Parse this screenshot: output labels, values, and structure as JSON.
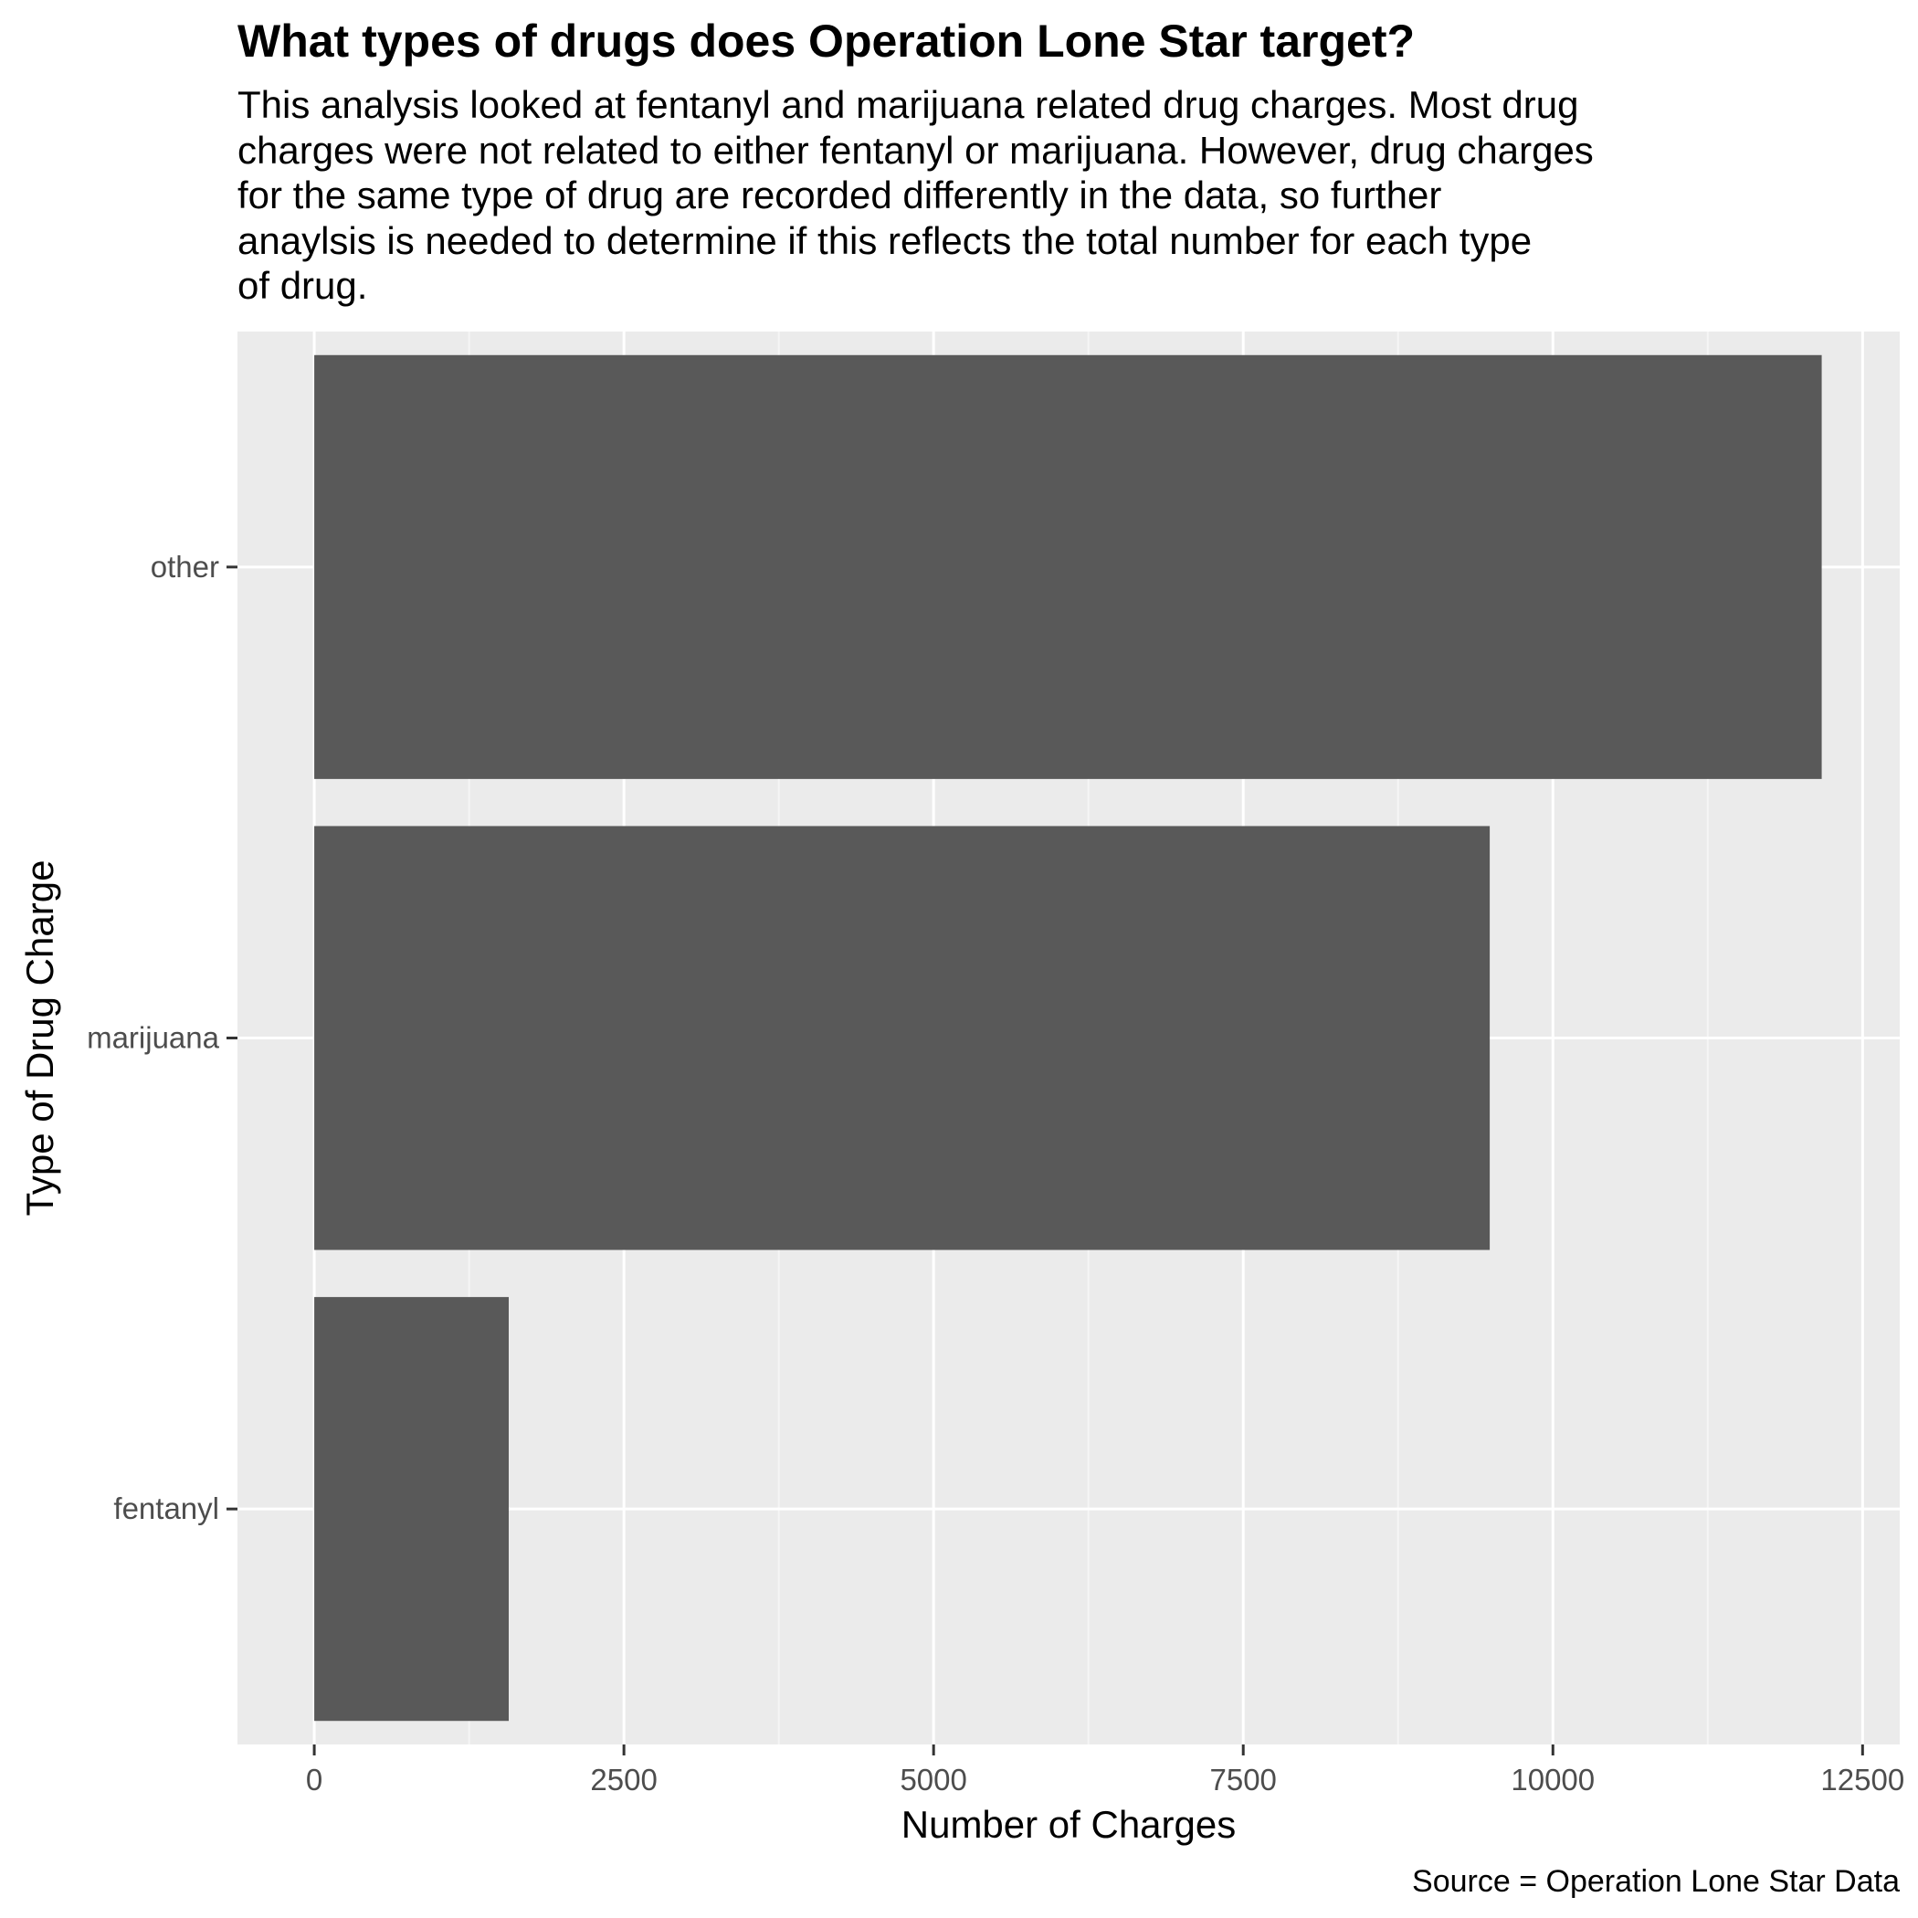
{
  "chart_data": {
    "type": "bar",
    "orientation": "horizontal",
    "title": "What types of drugs does Operation Lone Star target?",
    "subtitle_lines": [
      "This analysis looked at fentanyl and marijuana related drug charges. Most drug",
      "charges were not related to either fentanyl or marijuana. However, drug charges",
      "for the same type of drug are recorded differently in the data, so further",
      "anaylsis is needed to determine if this reflects the total number for each type",
      "of drug."
    ],
    "caption": "Source = Operation Lone Star Data",
    "xlabel": "Number of Charges",
    "ylabel": "Type of Drug Charge",
    "categories": [
      "fentanyl",
      "marijuana",
      "other"
    ],
    "values": [
      1570,
      9490,
      12170
    ],
    "xlim": [
      -620,
      12800
    ],
    "x_ticks": [
      0,
      2500,
      5000,
      7500,
      10000,
      12500
    ],
    "x_tick_labels": [
      "0",
      "2500",
      "5000",
      "7500",
      "10000",
      "12500"
    ],
    "grid": true,
    "colors": {
      "bar": "#595959",
      "panel_background": "#ebebeb",
      "grid_major": "#ffffff",
      "grid_minor": "#f5f5f5",
      "tick_text": "#4d4d4d",
      "tick_mark": "#333333"
    }
  }
}
